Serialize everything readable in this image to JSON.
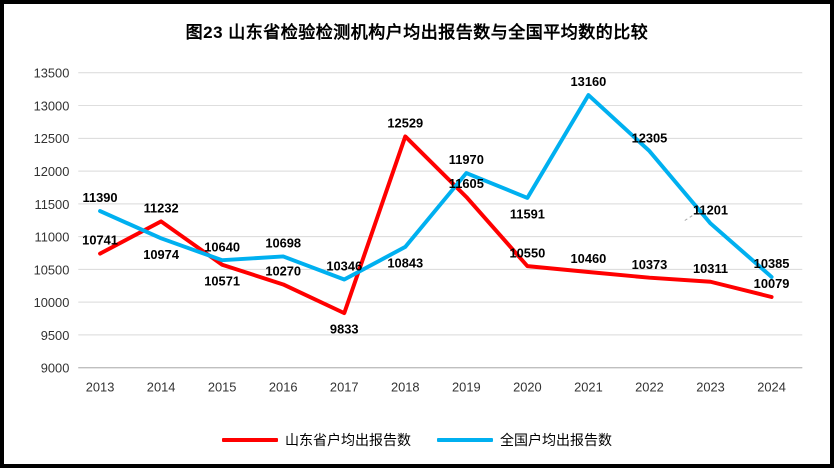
{
  "title": "图23  山东省检验检测机构户均出报告数与全国平均数的比较",
  "chart_data": {
    "type": "line",
    "x": [
      "2013",
      "2014",
      "2015",
      "2016",
      "2017",
      "2018",
      "2019",
      "2020",
      "2021",
      "2022",
      "2023",
      "2024"
    ],
    "series": [
      {
        "name": "山东省户均出报告数",
        "color": "#FF0000",
        "values": [
          10741,
          11232,
          10571,
          10270,
          9833,
          12529,
          11605,
          10550,
          10460,
          10373,
          10311,
          10079
        ],
        "label_pos": [
          "above",
          "above",
          "below",
          "above",
          "below",
          "above",
          "above",
          "above",
          "above",
          "above",
          "above",
          "above"
        ]
      },
      {
        "name": "全国户均出报告数",
        "color": "#00B0F0",
        "values": [
          11390,
          10974,
          10640,
          10698,
          10346,
          10843,
          11970,
          11591,
          13160,
          12305,
          11201,
          10385
        ],
        "label_pos": [
          "above",
          "below",
          "above",
          "above",
          "above",
          "below",
          "above",
          "below",
          "above",
          "above",
          "above",
          "above"
        ]
      }
    ],
    "ylim": [
      9000,
      13500
    ],
    "yticks": [
      9000,
      9500,
      10000,
      10500,
      11000,
      11500,
      12000,
      12500,
      13000,
      13500
    ],
    "grid": true,
    "legend_position": "bottom"
  },
  "colors": {
    "background": "#FFFFFF",
    "border": "#000000",
    "gridline": "#D9D9D9",
    "axis_line": "#BFBFBF",
    "tick_text": "#333333",
    "data_label_text": "#000000",
    "leader_line": "#A6A6A6"
  }
}
